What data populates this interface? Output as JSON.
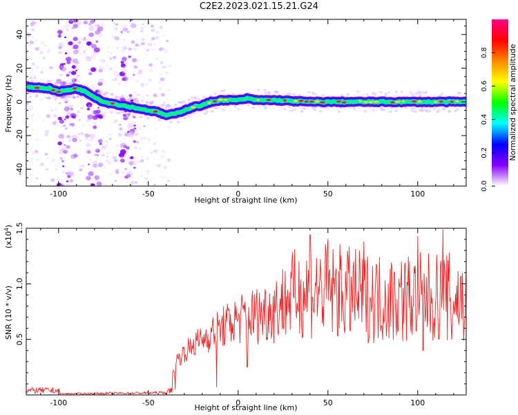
{
  "title": "C2E2.2023.021.15.21.G24",
  "chart_data": [
    {
      "type": "heatmap",
      "xlabel": "Height of straight line (km)",
      "ylabel": "Frequency (Hz)",
      "xlim": [
        -118,
        127
      ],
      "ylim": [
        -50,
        49
      ],
      "xticks": [
        -100,
        -50,
        0,
        50,
        100
      ],
      "yticks": [
        -40,
        -20,
        0,
        20,
        40
      ],
      "colorbar": {
        "label": "Normalized spectral amplitude",
        "range": [
          0,
          1
        ],
        "ticks": [
          "0.0",
          "0.2",
          "0.4",
          "0.6",
          "0.8"
        ],
        "colors": [
          "#ffffff",
          "#8800ff",
          "#0000ff",
          "#00ffff",
          "#00ff00",
          "#ffff00",
          "#ff8800",
          "#ff0000",
          "#ff0088"
        ]
      },
      "ridge_trace": {
        "x": [
          -118,
          -105,
          -100,
          -95,
          -90,
          -85,
          -80,
          -75,
          -70,
          -65,
          -60,
          -55,
          -50,
          -45,
          -40,
          -35,
          -30,
          -25,
          -20,
          -15,
          -10,
          -5,
          0,
          5,
          10,
          20,
          40,
          60,
          80,
          100,
          127
        ],
        "y": [
          9,
          8,
          6,
          7,
          8,
          6,
          3,
          0,
          -1,
          -2,
          -3,
          -4,
          -5,
          -6,
          -8,
          -7,
          -5,
          -3,
          -2,
          0,
          1,
          1,
          1,
          2,
          1,
          1,
          0,
          0,
          0,
          0,
          0
        ]
      },
      "ridge_core_amplitude": 0.9
    },
    {
      "type": "line",
      "xlabel": "Height of straight line (km)",
      "ylabel": "SNR (10 * v/v)",
      "y_multiplier_label": "(x10",
      "y_multiplier_exp": "4",
      "y_multiplier_close": ")",
      "xlim": [
        -118,
        127
      ],
      "ylim": [
        0,
        1.5
      ],
      "xticks": [
        -100,
        -50,
        0,
        50,
        100
      ],
      "yticks": [
        0.5,
        1.0,
        1.5
      ],
      "ytick_labels": [
        "0.5",
        "1.0",
        "1.5"
      ],
      "series": [
        {
          "color": "#ee2222",
          "envelope": {
            "x": [
              -118,
              -100,
              -99,
              -40,
              -37,
              -35,
              -30,
              -25,
              -20,
              -10,
              0,
              10,
              20,
              25,
              30,
              40,
              50,
              60,
              70,
              80,
              90,
              100,
              110,
              115,
              120,
              127
            ],
            "y": [
              0.04,
              0.04,
              0.01,
              0.02,
              0.05,
              0.3,
              0.38,
              0.45,
              0.5,
              0.6,
              0.68,
              0.72,
              0.78,
              0.84,
              0.9,
              0.95,
              0.93,
              0.92,
              0.88,
              0.87,
              0.87,
              0.88,
              0.87,
              0.88,
              0.87,
              0.86
            ]
          },
          "peaks": [
            {
              "x": 40,
              "y": 1.44
            },
            {
              "x": 50,
              "y": 1.4
            },
            {
              "x": 70,
              "y": 1.38
            },
            {
              "x": 100,
              "y": 1.43
            },
            {
              "x": 114,
              "y": 1.49
            }
          ],
          "minima": [
            {
              "x": -35,
              "y": 0.05
            },
            {
              "x": -12,
              "y": 0.07
            },
            {
              "x": 5,
              "y": 0.25
            },
            {
              "x": 103,
              "y": 0.4
            },
            {
              "x": 119,
              "y": 0.5
            }
          ]
        }
      ]
    }
  ]
}
